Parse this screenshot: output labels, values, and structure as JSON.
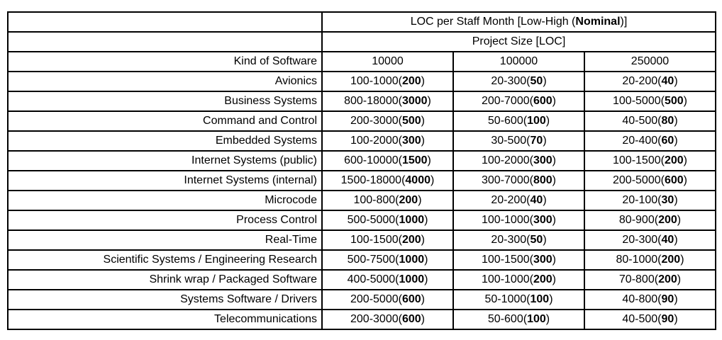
{
  "table": {
    "title": {
      "prefix": "LOC per Staff Month [Low-High (",
      "bold": "Nominal",
      "suffix": ")]"
    },
    "subtitle": "Project Size [LOC]",
    "columns": {
      "kind": "Kind of Software",
      "sizes": [
        "10000",
        "100000",
        "250000"
      ]
    },
    "rows": [
      {
        "name": "Avionics",
        "values": [
          "100-1000(200)",
          "20-300(50)",
          "20-200(40)"
        ]
      },
      {
        "name": "Business Systems",
        "values": [
          "800-18000(3000)",
          "200-7000(600)",
          "100-5000(500)"
        ]
      },
      {
        "name": "Command and Control",
        "values": [
          "200-3000(500)",
          "50-600(100)",
          "40-500(80)"
        ]
      },
      {
        "name": "Embedded Systems",
        "values": [
          "100-2000(300)",
          "30-500(70)",
          "20-400(60)"
        ]
      },
      {
        "name": "Internet Systems (public)",
        "values": [
          "600-10000(1500)",
          "100-2000(300)",
          "100-1500(200)"
        ]
      },
      {
        "name": "Internet Systems (internal)",
        "values": [
          "1500-18000(4000)",
          "300-7000(800)",
          "200-5000(600)"
        ]
      },
      {
        "name": "Microcode",
        "values": [
          "100-800(200)",
          "20-200(40)",
          "20-100(30)"
        ]
      },
      {
        "name": "Process Control",
        "values": [
          "500-5000(1000)",
          "100-1000(300)",
          "80-900(200)"
        ]
      },
      {
        "name": "Real-Time",
        "values": [
          "100-1500(200)",
          "20-300(50)",
          "20-300(40)"
        ]
      },
      {
        "name": "Scientific Systems / Engineering Research",
        "values": [
          "500-7500(1000)",
          "100-1500(300)",
          "80-1000(200)"
        ]
      },
      {
        "name": "Shrink wrap / Packaged Software",
        "values": [
          "400-5000(1000)",
          "100-1000(200)",
          "70-800(200)"
        ]
      },
      {
        "name": "Systems Software / Drivers",
        "values": [
          "200-5000(600)",
          "50-1000(100)",
          "40-800(90)"
        ]
      },
      {
        "name": "Telecommunications",
        "values": [
          "200-3000(600)",
          "50-600(100)",
          "40-500(90)"
        ]
      }
    ]
  }
}
